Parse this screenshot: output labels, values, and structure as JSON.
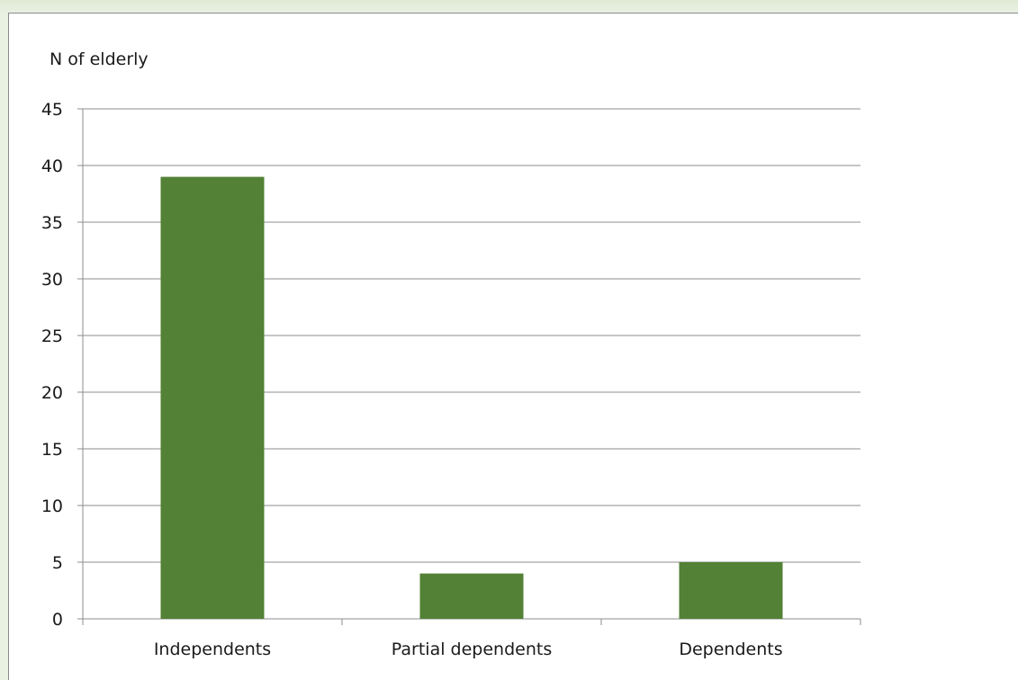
{
  "colors": {
    "bar": "#538135",
    "grid": "#8c8c8c",
    "background": "#ffffff",
    "outer": "#e9f1e2"
  },
  "chart_data": {
    "type": "bar",
    "title": "",
    "xlabel": "",
    "ylabel": "N of elderly",
    "categories": [
      "Independents",
      "Partial dependents",
      "Dependents"
    ],
    "values": [
      39,
      4,
      5
    ],
    "ylim": [
      0,
      45
    ],
    "yticks": [
      0,
      5,
      10,
      15,
      20,
      25,
      30,
      35,
      40,
      45
    ],
    "grid": true,
    "legend": "none"
  }
}
